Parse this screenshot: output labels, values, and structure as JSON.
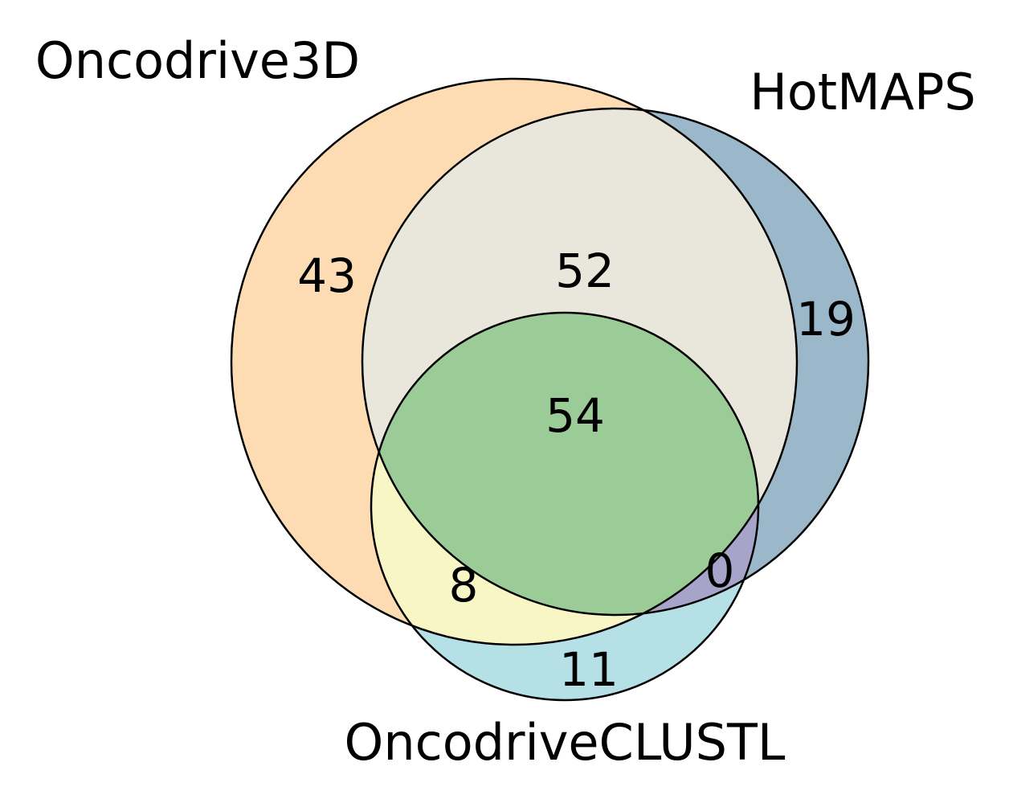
{
  "sets": [
    {
      "key": "A",
      "name": "Oncodrive3D",
      "color": "#fddcb4"
    },
    {
      "key": "B",
      "name": "HotMAPS",
      "color": "#9bb7ca"
    },
    {
      "key": "C",
      "name": "OncodriveCLUSTL",
      "color": "#b5e0e6"
    }
  ],
  "regions": [
    {
      "sets": [
        "A"
      ],
      "count": "43",
      "color": "#fddcb4"
    },
    {
      "sets": [
        "B"
      ],
      "count": "19",
      "color": "#9bb7ca"
    },
    {
      "sets": [
        "C"
      ],
      "count": "11",
      "color": "#b5e0e6"
    },
    {
      "sets": [
        "A",
        "B"
      ],
      "count": "52",
      "color": "#e9e6dc"
    },
    {
      "sets": [
        "A",
        "C"
      ],
      "count": "8",
      "color": "#f8f6c4"
    },
    {
      "sets": [
        "B",
        "C"
      ],
      "count": "0",
      "color": "#a7a4c9"
    },
    {
      "sets": [
        "A",
        "B",
        "C"
      ],
      "count": "54",
      "color": "#9bcc98"
    }
  ]
}
